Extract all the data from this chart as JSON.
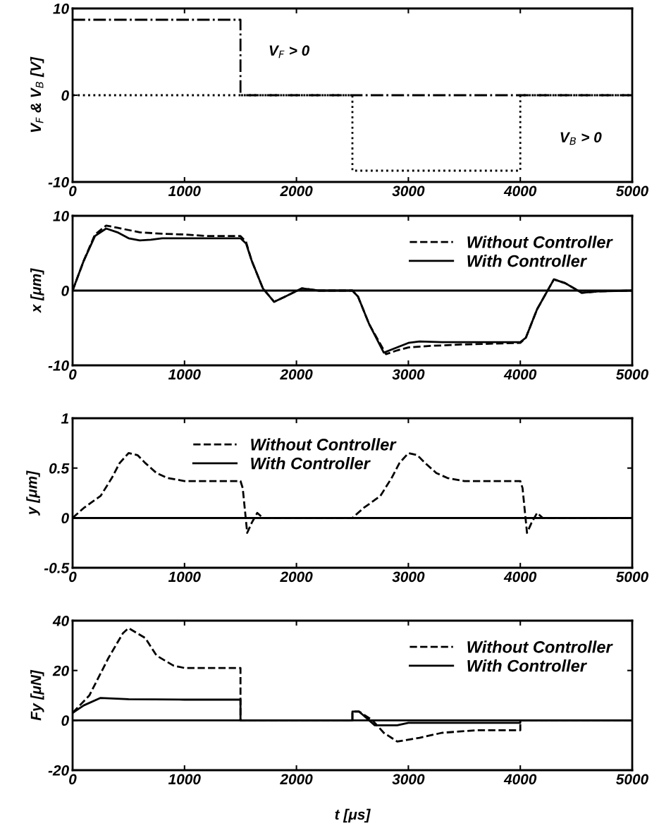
{
  "chart_data": [
    {
      "type": "line",
      "ylabel": "V$_{F}$ & V$_{B}$ [V]",
      "xlim": [
        0,
        5000
      ],
      "xticks": [
        0,
        1000,
        2000,
        3000,
        4000,
        5000
      ],
      "ylim": [
        -10,
        10
      ],
      "yticks": [
        -10,
        0,
        10
      ],
      "grid": false,
      "legend": false,
      "series": [
        {
          "color": "#000000",
          "line_style": "dashdot",
          "x": [
            0,
            1500,
            1500,
            5000
          ],
          "values": [
            8.7,
            8.7,
            0,
            0
          ]
        },
        {
          "color": "#000000",
          "line_style": "dotted",
          "x": [
            0,
            2500,
            2500,
            4000,
            4000,
            5000
          ],
          "values": [
            0,
            0,
            -8.7,
            -8.7,
            0,
            0
          ]
        }
      ],
      "annotations": [
        "V$_{F}$ > 0",
        "V$_{B}$ > 0"
      ]
    },
    {
      "type": "line",
      "ylabel": "x [μm]",
      "xlim": [
        0,
        5000
      ],
      "xticks": [
        0,
        1000,
        2000,
        3000,
        4000,
        5000
      ],
      "ylim": [
        -10,
        10
      ],
      "yticks": [
        -10,
        0,
        10
      ],
      "grid": false,
      "legend": "top right",
      "ref_lines": [
        {
          "axis": "y",
          "value": 0,
          "color": "#000000",
          "line_style": "solid"
        }
      ],
      "series": [
        {
          "name": "Without Controller",
          "color": "#000000",
          "line_style": "dashed",
          "x": [
            0,
            100,
            200,
            300,
            400,
            600,
            800,
            1000,
            1200,
            1500,
            1550,
            1600,
            1700,
            1800,
            1900,
            2050,
            2200,
            2500,
            2550,
            2650,
            2800,
            2900,
            3000,
            3200,
            3500,
            4000,
            4050,
            4150,
            4300,
            4400,
            4550,
            4700,
            5000
          ],
          "values": [
            0,
            4,
            7.5,
            8.7,
            8.4,
            7.8,
            7.6,
            7.5,
            7.3,
            7.3,
            6.5,
            4,
            0.3,
            -1.5,
            -0.8,
            0.3,
            0,
            0,
            -0.8,
            -4.5,
            -8.5,
            -8,
            -7.6,
            -7.4,
            -7.2,
            -7.0,
            -6.3,
            -2.5,
            1.5,
            1,
            -0.3,
            -0.1,
            0
          ]
        },
        {
          "name": "With Controller",
          "color": "#000000",
          "line_style": "solid",
          "x": [
            0,
            100,
            200,
            300,
            400,
            500,
            600,
            700,
            800,
            1000,
            1200,
            1500,
            1550,
            1600,
            1700,
            1800,
            1900,
            2050,
            2200,
            2500,
            2550,
            2650,
            2780,
            2900,
            3000,
            3100,
            3300,
            3500,
            4000,
            4050,
            4150,
            4300,
            4400,
            4550,
            4700,
            5000
          ],
          "values": [
            0,
            4,
            7.3,
            8.3,
            7.8,
            7.0,
            6.7,
            6.8,
            7.0,
            7.0,
            7.0,
            7.0,
            6.3,
            4,
            0.3,
            -1.5,
            -0.8,
            0.3,
            0,
            0,
            -0.8,
            -4.5,
            -8.3,
            -7.6,
            -7.0,
            -6.8,
            -6.9,
            -6.9,
            -6.9,
            -6.3,
            -2.5,
            1.5,
            1,
            -0.3,
            -0.1,
            0
          ]
        }
      ]
    },
    {
      "type": "line",
      "ylabel": "y [μm]",
      "xlim": [
        0,
        5000
      ],
      "xticks": [
        0,
        1000,
        2000,
        3000,
        4000,
        5000
      ],
      "ylim": [
        -0.5,
        1
      ],
      "yticks": [
        -0.5,
        0,
        0.5,
        1
      ],
      "grid": false,
      "legend": "top left",
      "ref_lines": [
        {
          "axis": "y",
          "value": 0,
          "color": "#000000",
          "line_style": "solid"
        }
      ],
      "series": [
        {
          "name": "Without Controller",
          "color": "#000000",
          "line_style": "dashed",
          "x": [
            0,
            100,
            250,
            350,
            420,
            500,
            580,
            650,
            750,
            850,
            1000,
            1500,
            1520,
            1560,
            1600,
            1650,
            1700,
            2500,
            2600,
            2750,
            2850,
            2920,
            3000,
            3080,
            3150,
            3250,
            3350,
            3500,
            4000,
            4020,
            4060,
            4100,
            4150,
            4200,
            5000
          ],
          "values": [
            0,
            0.1,
            0.22,
            0.4,
            0.55,
            0.65,
            0.63,
            0.55,
            0.45,
            0.4,
            0.37,
            0.37,
            0.3,
            -0.15,
            -0.05,
            0.05,
            0,
            0,
            0.1,
            0.22,
            0.4,
            0.55,
            0.65,
            0.63,
            0.55,
            0.45,
            0.4,
            0.37,
            0.37,
            0.3,
            -0.15,
            -0.05,
            0.05,
            0,
            0
          ]
        },
        {
          "name": "With Controller",
          "color": "#000000",
          "line_style": "solid",
          "x": [
            0,
            5000
          ],
          "values": [
            0,
            0
          ]
        }
      ]
    },
    {
      "type": "line",
      "ylabel": "Fy [μN]",
      "xlabel": "t [μs]",
      "xlim": [
        0,
        5000
      ],
      "xticks": [
        0,
        1000,
        2000,
        3000,
        4000,
        5000
      ],
      "ylim": [
        -20,
        40
      ],
      "yticks": [
        -20,
        0,
        20,
        40
      ],
      "grid": false,
      "legend": "top right",
      "ref_lines": [
        {
          "axis": "y",
          "value": 0,
          "color": "#000000",
          "line_style": "solid"
        }
      ],
      "series": [
        {
          "name": "Without Controller",
          "color": "#000000",
          "line_style": "dashed",
          "x": [
            0,
            150,
            320,
            450,
            500,
            650,
            750,
            900,
            1000,
            1500,
            1500,
            2500,
            2500,
            2560,
            2680,
            2780,
            2900,
            3100,
            3300,
            3600,
            4000,
            4000,
            5000
          ],
          "values": [
            3,
            10,
            25,
            35,
            37,
            33,
            26,
            22,
            21,
            21,
            0,
            0,
            3.5,
            3.5,
            0,
            -5,
            -8.5,
            -7,
            -5,
            -4,
            -4,
            0,
            0
          ]
        },
        {
          "name": "With Controller",
          "color": "#000000",
          "line_style": "solid",
          "x": [
            0,
            100,
            250,
            500,
            1000,
            1500,
            1500,
            2500,
            2500,
            2560,
            2650,
            2700,
            2900,
            3000,
            4000,
            4000,
            5000
          ],
          "values": [
            3,
            6,
            9,
            8.5,
            8.3,
            8.3,
            0,
            0,
            3.5,
            3.5,
            0,
            -2,
            -2,
            -1,
            -1,
            0,
            0
          ]
        }
      ]
    }
  ]
}
